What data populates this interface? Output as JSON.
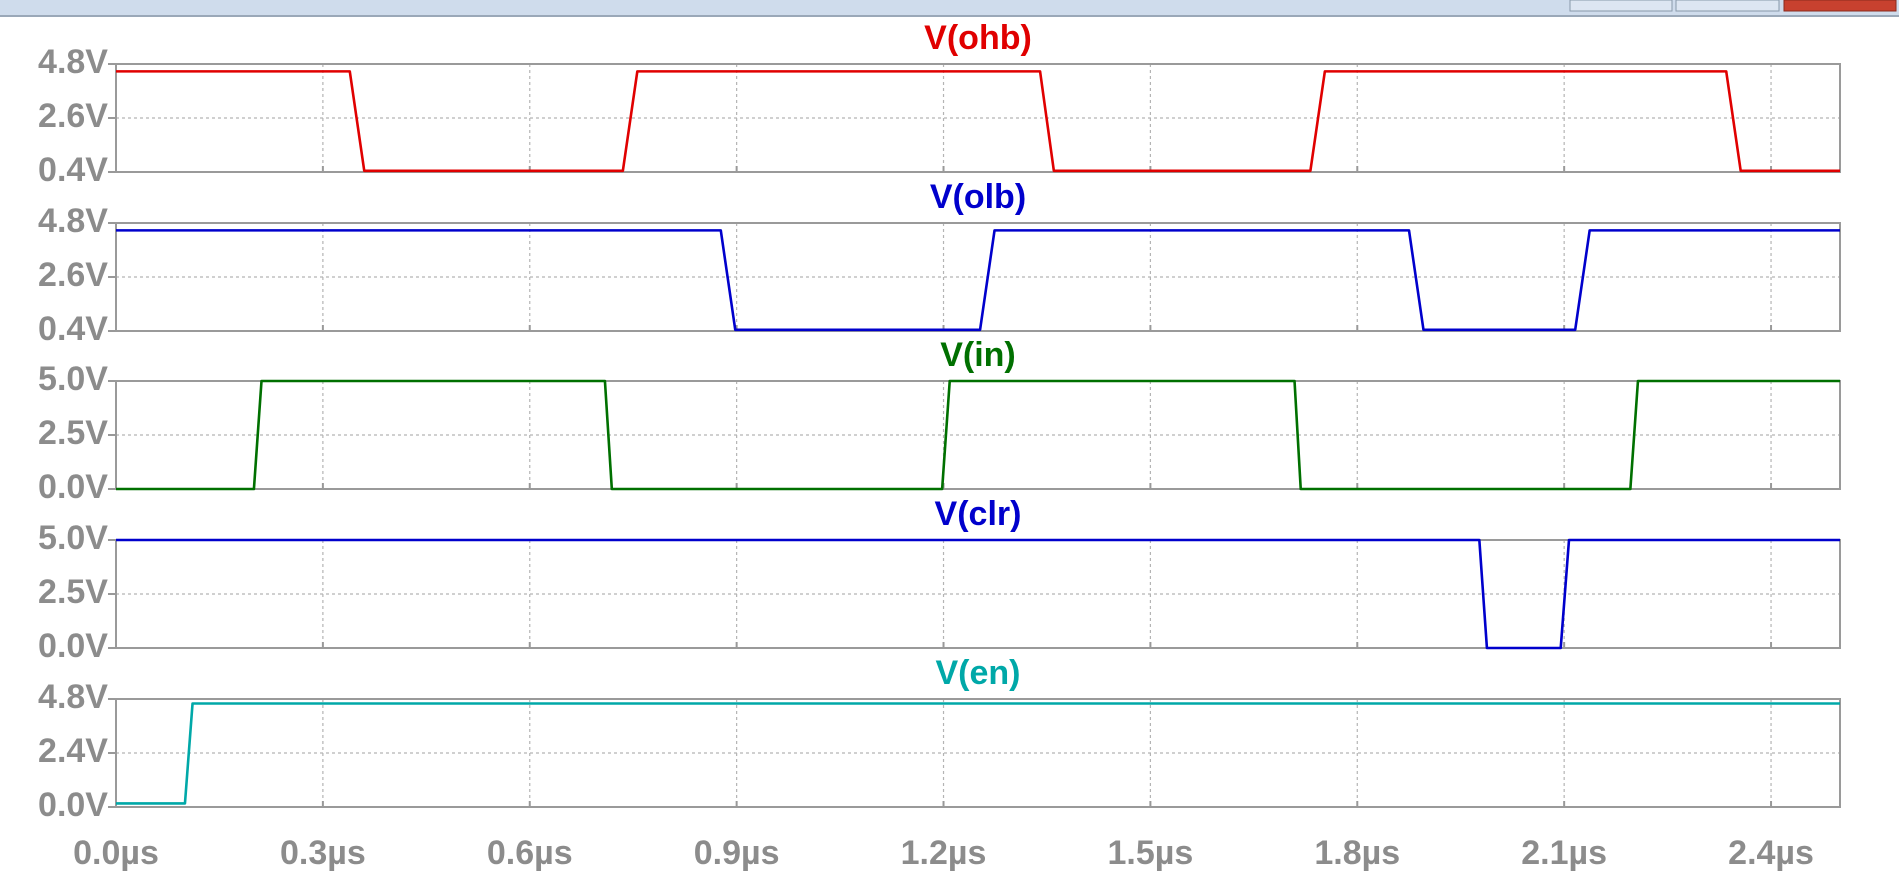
{
  "chart_data": [
    {
      "type": "line",
      "title": "V(ohb)",
      "color": "#e00000",
      "x": [
        0,
        0.339,
        0.36,
        0.735,
        0.756,
        1.34,
        1.36,
        1.732,
        1.753,
        2.335,
        2.356,
        2.5
      ],
      "values": [
        4.5,
        4.5,
        0.45,
        0.45,
        4.5,
        4.5,
        0.45,
        0.45,
        4.5,
        4.5,
        0.45,
        0.45
      ],
      "ylim": [
        0.4,
        4.8
      ],
      "yticks": [
        {
          "value": 0.4,
          "label": "0.4V"
        },
        {
          "value": 2.6,
          "label": "2.6V"
        },
        {
          "value": 4.8,
          "label": "4.8V"
        }
      ]
    },
    {
      "type": "line",
      "title": "V(olb)",
      "color": "#0000cc",
      "x": [
        0,
        0.877,
        0.898,
        1.253,
        1.274,
        1.875,
        1.896,
        2.116,
        2.137,
        2.5
      ],
      "values": [
        4.5,
        4.5,
        0.45,
        0.45,
        4.5,
        4.5,
        0.45,
        0.45,
        4.5,
        4.5
      ],
      "ylim": [
        0.4,
        4.8
      ],
      "yticks": [
        {
          "value": 0.4,
          "label": "0.4V"
        },
        {
          "value": 2.6,
          "label": "2.6V"
        },
        {
          "value": 4.8,
          "label": "4.8V"
        }
      ]
    },
    {
      "type": "line",
      "title": "V(in)",
      "color": "#007000",
      "x": [
        0,
        0.2,
        0.211,
        0.709,
        0.719,
        1.198,
        1.209,
        1.709,
        1.718,
        2.196,
        2.207,
        2.5
      ],
      "values": [
        0,
        0,
        5,
        5,
        0,
        0,
        5,
        5,
        0,
        0,
        5,
        5
      ],
      "ylim": [
        0,
        5
      ],
      "yticks": [
        {
          "value": 0,
          "label": "0.0V"
        },
        {
          "value": 2.5,
          "label": "2.5V"
        },
        {
          "value": 5,
          "label": "5.0V"
        }
      ]
    },
    {
      "type": "line",
      "title": "V(clr)",
      "color": "#0000cc",
      "x": [
        0,
        1.977,
        1.988,
        2.095,
        2.107,
        2.5
      ],
      "values": [
        5,
        5,
        0,
        0,
        5,
        5
      ],
      "ylim": [
        0,
        5
      ],
      "yticks": [
        {
          "value": 0,
          "label": "0.0V"
        },
        {
          "value": 2.5,
          "label": "2.5V"
        },
        {
          "value": 5,
          "label": "5.0V"
        }
      ]
    },
    {
      "type": "line",
      "title": "V(en)",
      "color": "#00a8a8",
      "x": [
        0,
        0.1,
        0.111,
        2.5
      ],
      "values": [
        0.16,
        0.16,
        4.6,
        4.6
      ],
      "ylim": [
        0,
        4.8
      ],
      "yticks": [
        {
          "value": 0,
          "label": "0.0V"
        },
        {
          "value": 2.4,
          "label": "2.4V"
        },
        {
          "value": 4.8,
          "label": "4.8V"
        }
      ],
      "xlim": [
        0,
        2.5
      ],
      "xticks": [
        {
          "value": 0,
          "label": "0.0µs"
        },
        {
          "value": 0.3,
          "label": "0.3µs"
        },
        {
          "value": 0.6,
          "label": "0.6µs"
        },
        {
          "value": 0.9,
          "label": "0.9µs"
        },
        {
          "value": 1.2,
          "label": "1.2µs"
        },
        {
          "value": 1.5,
          "label": "1.5µs"
        },
        {
          "value": 1.8,
          "label": "1.8µs"
        },
        {
          "value": 2.1,
          "label": "2.1µs"
        },
        {
          "value": 2.4,
          "label": "2.4µs"
        }
      ]
    }
  ]
}
